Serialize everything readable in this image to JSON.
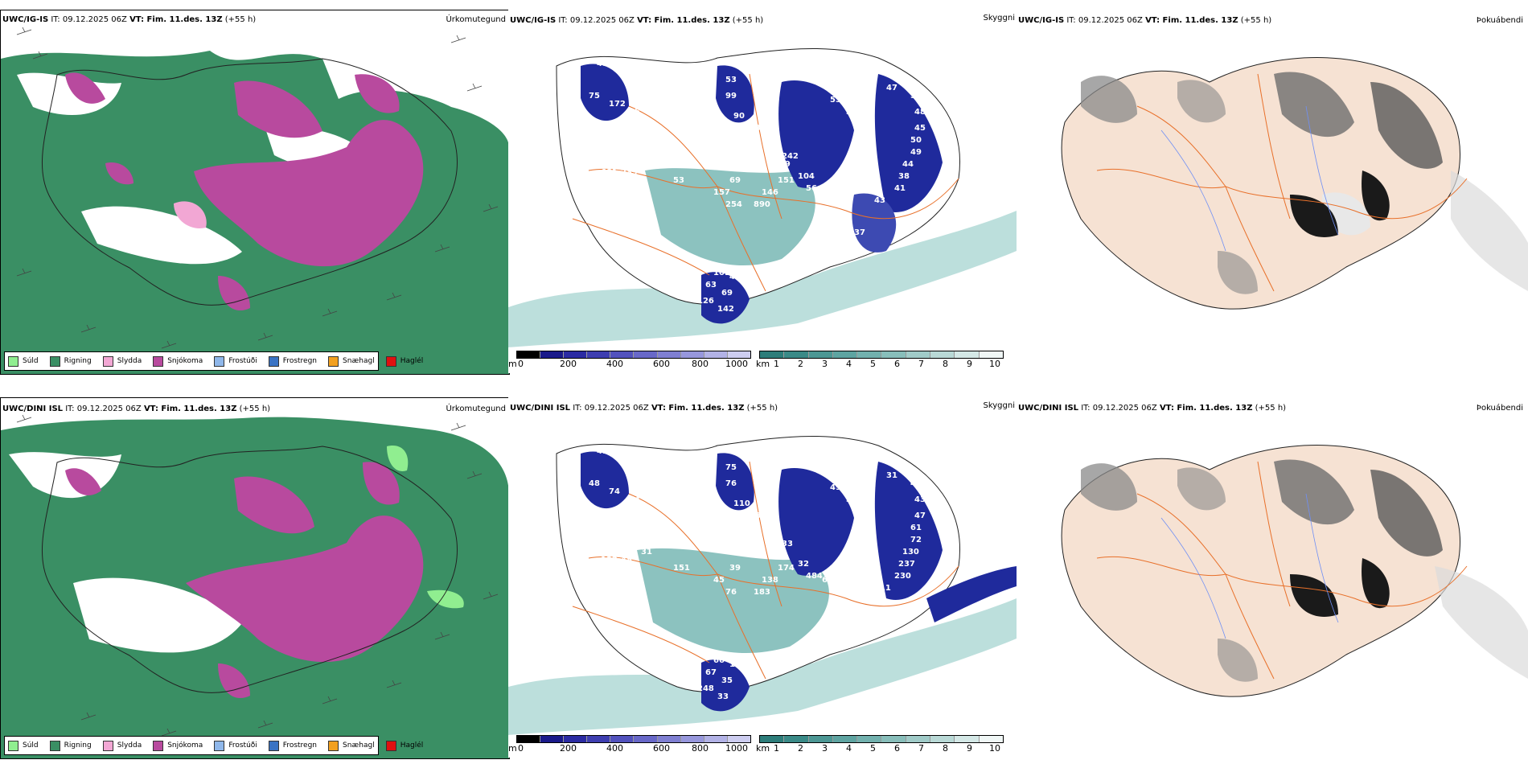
{
  "rows": [
    {
      "model": "UWC/IG-IS",
      "it_label": "IT: 09.12.2025 06Z",
      "vt_label": "VT: Fim. 11.des. 13Z",
      "lead": "(+55 h)",
      "precip_numbers": [
        "45",
        "82",
        "75",
        "172",
        "85",
        "53",
        "99",
        "90",
        "53",
        "142",
        "58",
        "53",
        "31",
        "47",
        "50",
        "48",
        "45",
        "50",
        "49",
        "44",
        "38",
        "41",
        "43",
        "71",
        "74",
        "969",
        "242",
        "104",
        "56",
        "49",
        "151",
        "146",
        "890",
        "254",
        "157",
        "69",
        "53",
        "109",
        "239",
        "681",
        "137",
        "101",
        "47",
        "63",
        "69",
        "126",
        "142",
        "32",
        "37",
        "48"
      ]
    },
    {
      "model": "UWC/DINI ISL",
      "it_label": "IT: 09.12.2025 06Z",
      "vt_label": "VT: Fim. 11.des. 13Z",
      "lead": "(+55 h)",
      "precip_numbers": [
        "41",
        "47",
        "48",
        "74",
        "64",
        "75",
        "76",
        "110",
        "181",
        "50",
        "80",
        "49",
        "39",
        "31",
        "44",
        "43",
        "47",
        "61",
        "72",
        "130",
        "237",
        "230",
        "111",
        "46",
        "51",
        "37",
        "33",
        "32",
        "484",
        "610",
        "174",
        "138",
        "183",
        "76",
        "45",
        "39",
        "151",
        "31",
        "48",
        "132",
        "52",
        "66",
        "109",
        "67",
        "35",
        "248",
        "33",
        "128"
      ]
    }
  ],
  "panel_titles": {
    "precip_type": "Úrkomutegund",
    "cloud": "Skyggni",
    "fog": "Þokuábendi"
  },
  "precip_legend": [
    {
      "label": "Súld",
      "color": "#90ee90"
    },
    {
      "label": "Rigning",
      "color": "#3a8f64"
    },
    {
      "label": "Slydda",
      "color": "#f2a7d4"
    },
    {
      "label": "Snjókoma",
      "color": "#b84a9e"
    },
    {
      "label": "Frostúði",
      "color": "#8fb7ea"
    },
    {
      "label": "Frostregn",
      "color": "#3a73c4"
    },
    {
      "label": "Snæhagl",
      "color": "#f2a020"
    },
    {
      "label": "Haglél",
      "color": "#e01010"
    }
  ],
  "elev_bar": {
    "unit": "m",
    "ticks": [
      "0",
      "200",
      "400",
      "600",
      "800",
      "1000"
    ]
  },
  "vis_bar": {
    "unit": "km",
    "ticks": [
      "1",
      "2",
      "3",
      "4",
      "5",
      "6",
      "7",
      "8",
      "9",
      "10"
    ]
  },
  "cov_legend": {
    "top": "0",
    "bottom": "60"
  },
  "colors": {
    "rain": "#3a8f64",
    "snow": "#b84a9e",
    "sleet": "#f2a7d4",
    "visibility": "#2d8f8a",
    "deep_blue": "#1f2a9c",
    "land": "#f6e2d3",
    "roads": "#e8702a",
    "rivers": "#6f8ff5"
  }
}
